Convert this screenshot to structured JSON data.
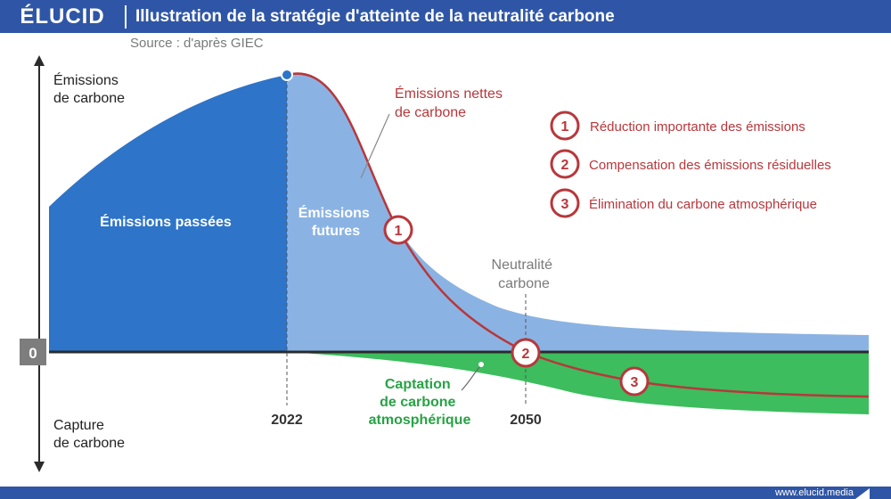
{
  "header": {
    "logo": "ÉLUCID",
    "title": "Illustration de la stratégie d'atteinte de la neutralité carbone"
  },
  "source": "Source : d'après GIEC",
  "axis": {
    "top_label": [
      "Émissions",
      "de carbone"
    ],
    "bottom_label": [
      "Capture",
      "de carbone"
    ],
    "zero": "0"
  },
  "years": {
    "y2022": "2022",
    "y2050": "2050"
  },
  "areas": {
    "past": "Émissions passées",
    "future": [
      "Émissions",
      "futures"
    ],
    "capture": [
      "Captation",
      "de carbone",
      "atmosphérique"
    ]
  },
  "annotations": {
    "net_emissions": [
      "Émissions nettes",
      "de carbone"
    ],
    "neutrality": [
      "Neutralité",
      "carbone"
    ]
  },
  "legend": [
    {
      "number": "1",
      "text": "Réduction importante des émissions"
    },
    {
      "number": "2",
      "text": "Compensation des émissions résiduelles"
    },
    {
      "number": "3",
      "text": "Élimination du carbone atmosphérique"
    }
  ],
  "footer": {
    "url": "www.elucid.media"
  },
  "colors": {
    "brand": "#2f56a6",
    "past_emissions": "#2e74c8",
    "future_emissions": "#8ab3e4",
    "capture": "#3dbd5e",
    "net_line": "#b8373b",
    "label_blue": "#ffffff",
    "label_green": "#27a345"
  }
}
